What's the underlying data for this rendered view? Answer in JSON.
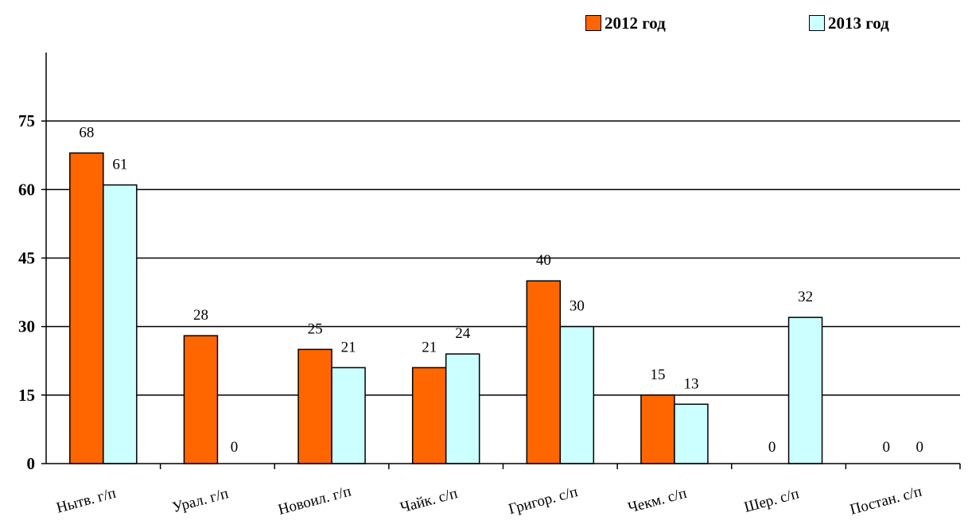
{
  "chart_data": {
    "type": "bar",
    "categories": [
      "Нытв. г/п",
      "Урал. г/п",
      "Новоил. г/п",
      "Чайк. с/п",
      "Григор. с/п",
      "Чекм. с/п",
      "Шер. с/п",
      "Постан. с/п"
    ],
    "series": [
      {
        "name": "2012 год",
        "values": [
          68,
          28,
          25,
          21,
          40,
          15,
          0,
          0
        ],
        "color": "#FF6600"
      },
      {
        "name": "2013 год",
        "values": [
          61,
          0,
          21,
          24,
          30,
          13,
          32,
          0
        ],
        "color": "#CCFFFF"
      }
    ],
    "title": "",
    "xlabel": "",
    "ylabel": "",
    "ylim": [
      0,
      90
    ],
    "yticks": [
      0,
      15,
      30,
      45,
      60,
      75
    ],
    "grid": true,
    "legend_position": "top-right"
  },
  "colors": {
    "series_2012": "#FF6600",
    "series_2013": "#CCFFFF",
    "axis": "#000000",
    "grid": "#000000"
  }
}
